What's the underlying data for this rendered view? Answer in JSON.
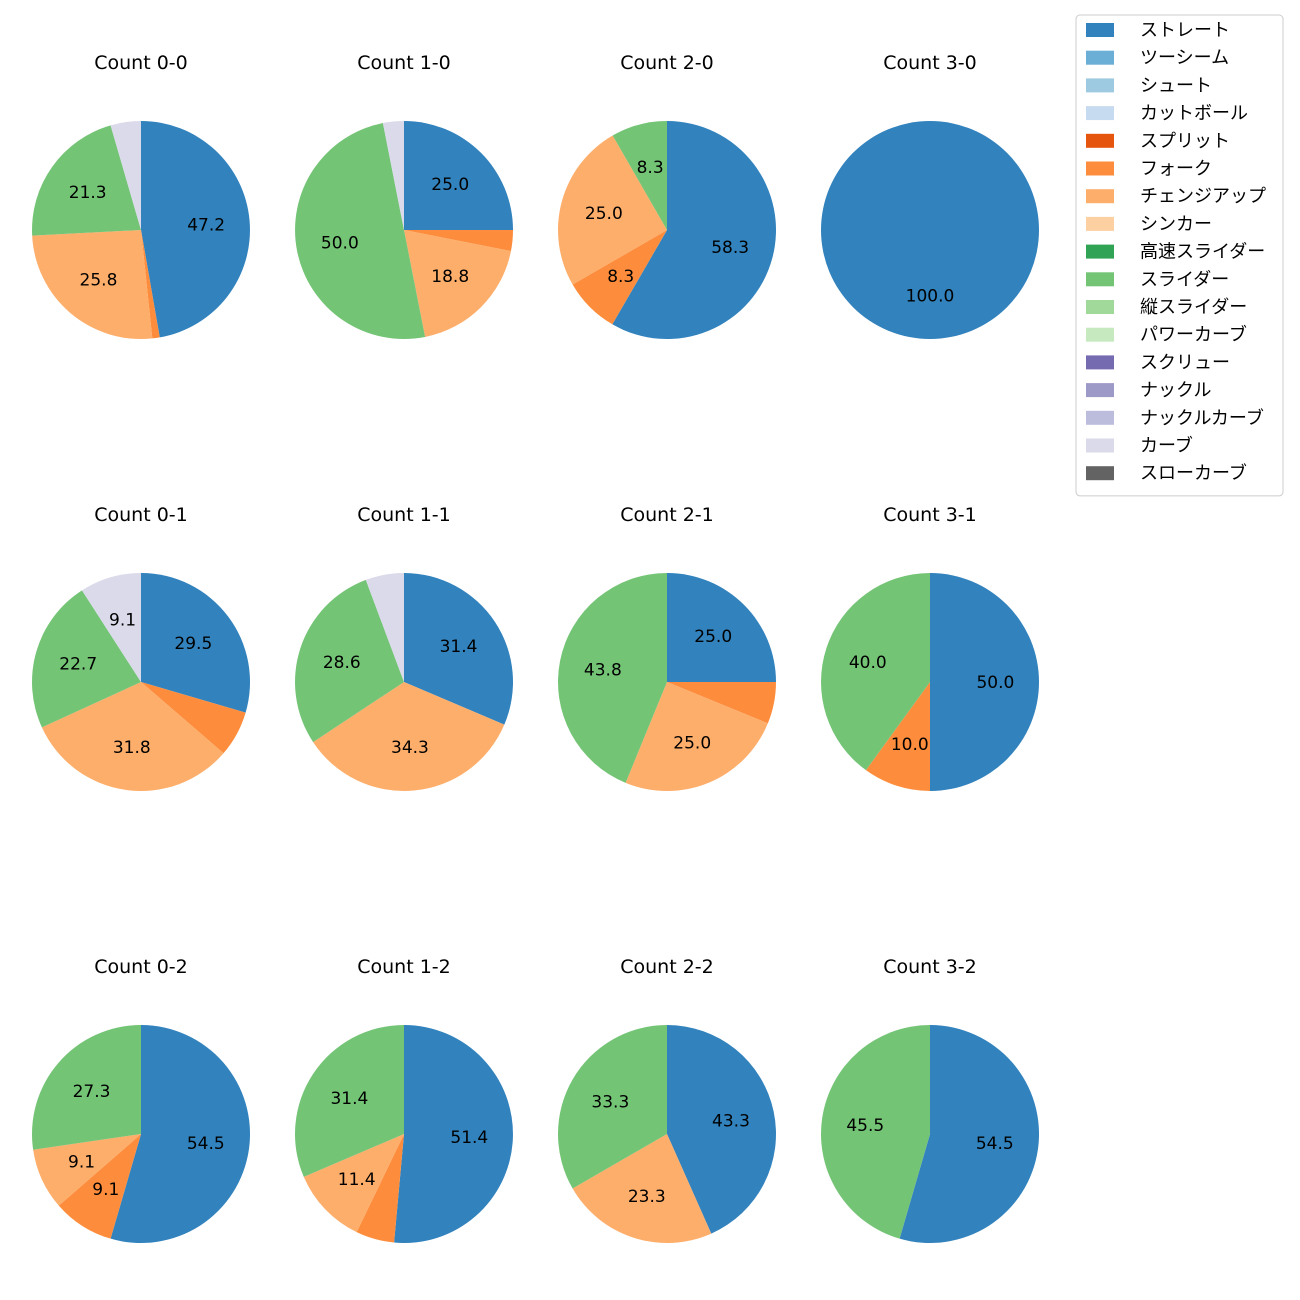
{
  "chart_data": {
    "type": "pie",
    "legend": {
      "placement": "top-right",
      "entries": [
        {
          "name": "ストレート",
          "color": "#3182bd"
        },
        {
          "name": "ツーシーム",
          "color": "#6baed6"
        },
        {
          "name": "シュート",
          "color": "#9ecae1"
        },
        {
          "name": "カットボール",
          "color": "#c6dbef"
        },
        {
          "name": "スプリット",
          "color": "#e6550d"
        },
        {
          "name": "フォーク",
          "color": "#fd8d3c"
        },
        {
          "name": "チェンジアップ",
          "color": "#fdae6b"
        },
        {
          "name": "シンカー",
          "color": "#fdd0a2"
        },
        {
          "name": "高速スライダー",
          "color": "#31a354"
        },
        {
          "name": "スライダー",
          "color": "#74c476"
        },
        {
          "name": "縦スライダー",
          "color": "#a1d99b"
        },
        {
          "name": "パワーカーブ",
          "color": "#c7e9c0"
        },
        {
          "name": "スクリュー",
          "color": "#756bb1"
        },
        {
          "name": "ナックル",
          "color": "#9e9ac8"
        },
        {
          "name": "ナックルカーブ",
          "color": "#bcbddc"
        },
        {
          "name": "カーブ",
          "color": "#dadaeb"
        },
        {
          "name": "スローカーブ",
          "color": "#636363"
        }
      ]
    },
    "pies": [
      {
        "title": "Count 0-0",
        "slices": [
          {
            "pitch": "ストレート",
            "value": 47.2,
            "label": "47.2"
          },
          {
            "pitch": "フォーク",
            "value": 1.1,
            "label": ""
          },
          {
            "pitch": "チェンジアップ",
            "value": 25.8,
            "label": "25.8"
          },
          {
            "pitch": "スライダー",
            "value": 21.3,
            "label": "21.3"
          },
          {
            "pitch": "カーブ",
            "value": 4.5,
            "label": ""
          }
        ]
      },
      {
        "title": "Count 1-0",
        "slices": [
          {
            "pitch": "ストレート",
            "value": 25.0,
            "label": "25.0"
          },
          {
            "pitch": "フォーク",
            "value": 3.1,
            "label": ""
          },
          {
            "pitch": "チェンジアップ",
            "value": 18.8,
            "label": "18.8"
          },
          {
            "pitch": "スライダー",
            "value": 50.0,
            "label": "50.0"
          },
          {
            "pitch": "カーブ",
            "value": 3.1,
            "label": ""
          }
        ]
      },
      {
        "title": "Count 2-0",
        "slices": [
          {
            "pitch": "ストレート",
            "value": 58.3,
            "label": "58.3"
          },
          {
            "pitch": "フォーク",
            "value": 8.3,
            "label": "8.3"
          },
          {
            "pitch": "チェンジアップ",
            "value": 25.0,
            "label": "25.0"
          },
          {
            "pitch": "スライダー",
            "value": 8.3,
            "label": "8.3"
          }
        ]
      },
      {
        "title": "Count 3-0",
        "slices": [
          {
            "pitch": "ストレート",
            "value": 100.0,
            "label": "100.0"
          }
        ]
      },
      {
        "title": "Count 0-1",
        "slices": [
          {
            "pitch": "ストレート",
            "value": 29.5,
            "label": "29.5"
          },
          {
            "pitch": "フォーク",
            "value": 6.8,
            "label": ""
          },
          {
            "pitch": "チェンジアップ",
            "value": 31.8,
            "label": "31.8"
          },
          {
            "pitch": "スライダー",
            "value": 22.7,
            "label": "22.7"
          },
          {
            "pitch": "カーブ",
            "value": 9.1,
            "label": "9.1"
          }
        ]
      },
      {
        "title": "Count 1-1",
        "slices": [
          {
            "pitch": "ストレート",
            "value": 31.4,
            "label": "31.4"
          },
          {
            "pitch": "チェンジアップ",
            "value": 34.3,
            "label": "34.3"
          },
          {
            "pitch": "スライダー",
            "value": 28.6,
            "label": "28.6"
          },
          {
            "pitch": "カーブ",
            "value": 5.7,
            "label": ""
          }
        ]
      },
      {
        "title": "Count 2-1",
        "slices": [
          {
            "pitch": "ストレート",
            "value": 25.0,
            "label": "25.0"
          },
          {
            "pitch": "フォーク",
            "value": 6.2,
            "label": ""
          },
          {
            "pitch": "チェンジアップ",
            "value": 25.0,
            "label": "25.0"
          },
          {
            "pitch": "スライダー",
            "value": 43.8,
            "label": "43.8"
          }
        ]
      },
      {
        "title": "Count 3-1",
        "slices": [
          {
            "pitch": "ストレート",
            "value": 50.0,
            "label": "50.0"
          },
          {
            "pitch": "フォーク",
            "value": 10.0,
            "label": "10.0"
          },
          {
            "pitch": "スライダー",
            "value": 40.0,
            "label": "40.0"
          }
        ]
      },
      {
        "title": "Count 0-2",
        "slices": [
          {
            "pitch": "ストレート",
            "value": 54.5,
            "label": "54.5"
          },
          {
            "pitch": "フォーク",
            "value": 9.1,
            "label": "9.1"
          },
          {
            "pitch": "チェンジアップ",
            "value": 9.1,
            "label": "9.1"
          },
          {
            "pitch": "スライダー",
            "value": 27.3,
            "label": "27.3"
          }
        ]
      },
      {
        "title": "Count 1-2",
        "slices": [
          {
            "pitch": "ストレート",
            "value": 51.4,
            "label": "51.4"
          },
          {
            "pitch": "フォーク",
            "value": 5.7,
            "label": ""
          },
          {
            "pitch": "チェンジアップ",
            "value": 11.4,
            "label": "11.4"
          },
          {
            "pitch": "スライダー",
            "value": 31.4,
            "label": "31.4"
          }
        ]
      },
      {
        "title": "Count 2-2",
        "slices": [
          {
            "pitch": "ストレート",
            "value": 43.3,
            "label": "43.3"
          },
          {
            "pitch": "チェンジアップ",
            "value": 23.3,
            "label": "23.3"
          },
          {
            "pitch": "スライダー",
            "value": 33.3,
            "label": "33.3"
          }
        ]
      },
      {
        "title": "Count 3-2",
        "slices": [
          {
            "pitch": "ストレート",
            "value": 54.5,
            "label": "54.5"
          },
          {
            "pitch": "スライダー",
            "value": 45.5,
            "label": "45.5"
          }
        ]
      }
    ]
  }
}
